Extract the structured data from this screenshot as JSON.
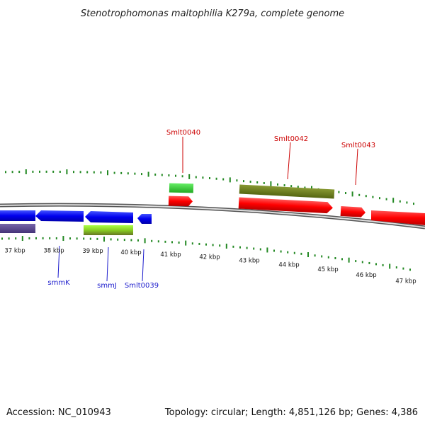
{
  "title": "Stenotrophomonas maltophilia K279a, complete genome",
  "footer": {
    "accession": "Accession: NC_010943",
    "summary": "Topology: circular; Length: 4,851,126 bp; Genes: 4,386"
  },
  "kbp_labels": [
    "37 kbp",
    "38 kbp",
    "39 kbp",
    "40 kbp",
    "41 kbp",
    "42 kbp",
    "43 kbp",
    "44 kbp",
    "45 kbp",
    "46 kbp",
    "47 kbp"
  ],
  "gene_labels": {
    "smlt0040": "Smlt0040",
    "smlt0042": "Smlt0042",
    "smlt0043": "Smlt0043",
    "smmK": "smmK",
    "smmJ": "smmJ",
    "smlt0039": "Smlt0039"
  },
  "colors": {
    "forward_cds": "#ff0000",
    "reverse_cds": "#0000ee",
    "forward_gene": "#33cc33",
    "forward_operon": "#667722",
    "reverse_gene": "#88cc22",
    "reverse_operon": "#554488",
    "ticks": "#228822",
    "red_label": "#cc0000",
    "blue_label": "#1a1acc"
  }
}
